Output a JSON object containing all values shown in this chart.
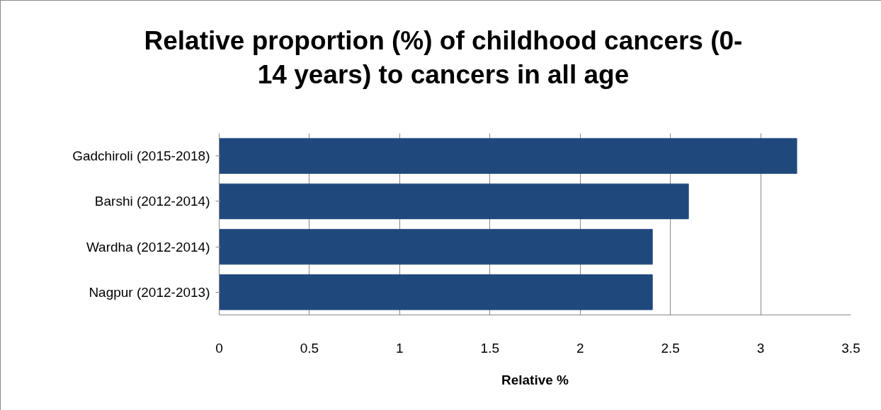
{
  "chart_data": {
    "type": "bar",
    "orientation": "horizontal",
    "title": "Relative proportion (%) of childhood cancers (0-14 years) to cancers in all age",
    "xlabel": "Relative %",
    "categories": [
      "Gadchiroli (2015-2018)",
      "Barshi (2012-2014)",
      "Wardha (2012-2014)",
      "Nagpur (2012-2013)"
    ],
    "values": [
      3.2,
      2.6,
      2.4,
      2.4
    ],
    "color": "#1f497d",
    "xlim": [
      0,
      3.5
    ],
    "xticks": [
      0,
      0.5,
      1,
      1.5,
      2,
      2.5,
      3,
      3.5
    ],
    "grid": "x"
  }
}
